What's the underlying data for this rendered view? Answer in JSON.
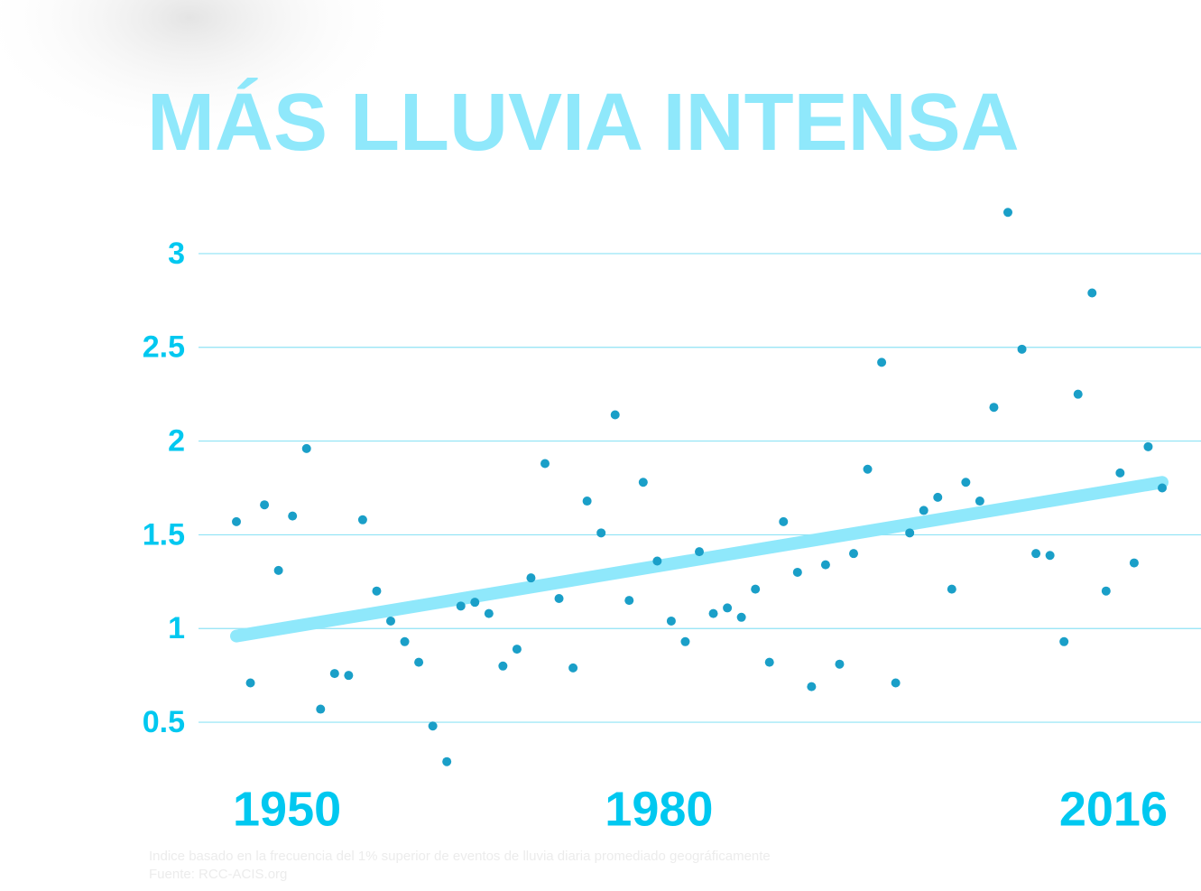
{
  "chart_data": {
    "type": "scatter",
    "title": "MÁS LLUVIA INTENSA",
    "notes": [
      "Indice basado en la frecuencia del 1% superior de eventos de lluvia diaria promediado geográficamente",
      "Fuente: RCC-ACIS.org"
    ],
    "x": [
      1950,
      1951,
      1952,
      1953,
      1954,
      1955,
      1956,
      1957,
      1958,
      1959,
      1960,
      1961,
      1962,
      1963,
      1964,
      1965,
      1966,
      1967,
      1968,
      1969,
      1970,
      1971,
      1972,
      1973,
      1974,
      1975,
      1976,
      1977,
      1978,
      1979,
      1980,
      1981,
      1982,
      1983,
      1984,
      1985,
      1986,
      1987,
      1988,
      1989,
      1990,
      1991,
      1992,
      1993,
      1994,
      1995,
      1996,
      1997,
      1998,
      1999,
      2000,
      2001,
      2002,
      2003,
      2004,
      2005,
      2006,
      2007,
      2008,
      2009,
      2010,
      2011,
      2012,
      2013,
      2014,
      2015,
      2016
    ],
    "values": [
      1.57,
      0.71,
      1.66,
      1.31,
      1.6,
      1.96,
      0.57,
      0.76,
      0.75,
      1.58,
      1.2,
      1.04,
      0.93,
      0.82,
      0.48,
      0.29,
      1.12,
      1.14,
      1.08,
      0.8,
      0.89,
      1.27,
      1.88,
      1.16,
      0.79,
      1.68,
      1.51,
      2.14,
      1.15,
      1.78,
      1.36,
      1.04,
      0.93,
      1.41,
      1.08,
      1.11,
      1.06,
      1.21,
      0.82,
      1.57,
      1.3,
      0.69,
      1.34,
      0.81,
      1.4,
      1.85,
      2.42,
      0.71,
      1.51,
      1.63,
      1.7,
      1.21,
      1.78,
      1.68,
      2.18,
      3.22,
      2.49,
      1.4,
      1.39,
      0.93,
      2.25,
      2.79,
      1.2,
      1.83,
      1.35,
      1.97,
      1.75
    ],
    "color": "#1a9fc8",
    "trend": {
      "x": [
        1950,
        2016
      ],
      "values": [
        0.96,
        1.78
      ],
      "color": "#8fe8fb"
    },
    "xlim": [
      1950,
      2016
    ],
    "xticks": [
      1950,
      1980,
      2016
    ],
    "ylim": [
      0.25,
      3.25
    ],
    "yticks": [
      0.5,
      1,
      1.5,
      2,
      2.5,
      3
    ],
    "grid": true,
    "grid_color": "#8fe3f5"
  }
}
